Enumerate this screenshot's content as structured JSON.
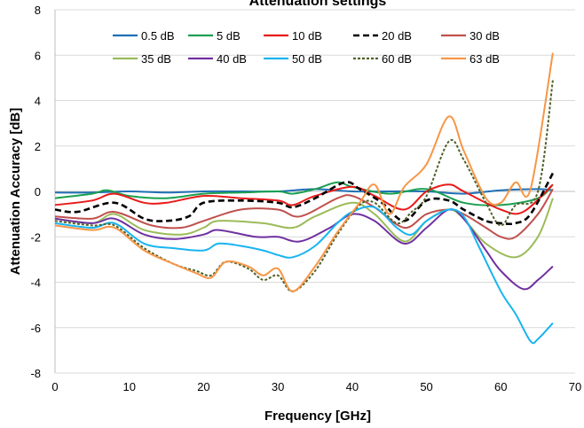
{
  "chart_data": {
    "type": "line",
    "title": "Attenuation settings",
    "xlabel": "Frequency [GHz]",
    "ylabel": "Attenuation Accuracy [dB]",
    "xlim": [
      0,
      70
    ],
    "ylim": [
      -8,
      8
    ],
    "xticks": [
      "0",
      "10",
      "20",
      "30",
      "40",
      "50",
      "60",
      "70"
    ],
    "yticks": [
      "-8",
      "-6",
      "-4",
      "-2",
      "0",
      "2",
      "4",
      "6",
      "8"
    ],
    "grid": "horizontal",
    "legend_position": "top",
    "series": [
      {
        "name": "0.5 dB",
        "color": "#1f6fb4",
        "dash": "solid",
        "x": [
          0,
          5,
          10,
          15,
          20,
          25,
          30,
          35,
          40,
          45,
          50,
          55,
          60,
          65,
          67
        ],
        "y": [
          -0.05,
          -0.05,
          0.0,
          -0.05,
          0.0,
          0.0,
          0.0,
          0.1,
          0.0,
          0.0,
          0.0,
          -0.1,
          0.05,
          0.1,
          0.05
        ]
      },
      {
        "name": "5 dB",
        "color": "#1aa050",
        "dash": "solid",
        "x": [
          0,
          5,
          7,
          10,
          15,
          20,
          25,
          30,
          32,
          35,
          38,
          40,
          45,
          50,
          55,
          60,
          65,
          67
        ],
        "y": [
          -0.3,
          -0.1,
          0.05,
          -0.2,
          -0.3,
          -0.1,
          -0.05,
          0.0,
          -0.1,
          0.1,
          0.4,
          0.2,
          -0.1,
          0.1,
          -0.5,
          -0.6,
          -0.3,
          0.3
        ]
      },
      {
        "name": "10 dB",
        "color": "#e81a1a",
        "dash": "solid",
        "x": [
          0,
          5,
          8,
          12,
          15,
          20,
          25,
          30,
          32,
          35,
          40,
          43,
          47,
          50,
          53,
          55,
          60,
          63,
          67
        ],
        "y": [
          -0.6,
          -0.4,
          -0.1,
          -0.5,
          -0.5,
          -0.2,
          -0.3,
          -0.4,
          -0.6,
          -0.2,
          0.2,
          -0.2,
          -0.8,
          0.0,
          0.3,
          0.0,
          -0.8,
          -0.9,
          0.3
        ]
      },
      {
        "name": "20 dB",
        "color": "#000000",
        "dash": "dash",
        "x": [
          0,
          3,
          8,
          12,
          15,
          18,
          20,
          25,
          30,
          32,
          35,
          39,
          41,
          44,
          47,
          50,
          53,
          55,
          58,
          60,
          62,
          64,
          67
        ],
        "y": [
          -0.8,
          -0.9,
          -0.5,
          -1.2,
          -1.3,
          -1.1,
          -0.5,
          -0.4,
          -0.5,
          -0.7,
          -0.3,
          0.4,
          0.1,
          -0.5,
          -1.3,
          -0.4,
          -0.4,
          -0.8,
          -1.3,
          -1.4,
          -1.4,
          -1.0,
          0.8
        ]
      },
      {
        "name": "30 dB",
        "color": "#c0504d",
        "dash": "solid",
        "x": [
          0,
          5,
          8,
          13,
          17,
          20,
          25,
          30,
          33,
          38,
          40,
          43,
          47,
          50,
          53,
          55,
          58,
          60,
          62,
          65,
          67
        ],
        "y": [
          -1.1,
          -1.2,
          -0.9,
          -1.5,
          -1.6,
          -1.3,
          -0.8,
          -0.8,
          -1.1,
          -0.3,
          -0.2,
          -0.7,
          -1.6,
          -1.0,
          -0.8,
          -1.0,
          -1.6,
          -2.0,
          -2.0,
          -1.0,
          0.1
        ]
      },
      {
        "name": "35 dB",
        "color": "#9bbb59",
        "dash": "solid",
        "x": [
          0,
          5,
          8,
          12,
          17,
          20,
          22,
          28,
          32,
          35,
          40,
          43,
          47,
          50,
          53,
          55,
          58,
          62,
          65,
          67
        ],
        "y": [
          -1.2,
          -1.4,
          -1.0,
          -1.7,
          -1.9,
          -1.6,
          -1.3,
          -1.4,
          -1.6,
          -1.1,
          -0.5,
          -1.0,
          -2.2,
          -1.3,
          -0.8,
          -1.2,
          -2.3,
          -2.9,
          -2.0,
          -0.3
        ]
      },
      {
        "name": "40 dB",
        "color": "#7030a0",
        "dash": "solid",
        "x": [
          0,
          5,
          8,
          12,
          16,
          20,
          22,
          27,
          30,
          33,
          37,
          40,
          43,
          47,
          50,
          53,
          55,
          58,
          60,
          63,
          65,
          67
        ],
        "y": [
          -1.2,
          -1.4,
          -1.2,
          -1.9,
          -2.1,
          -1.9,
          -1.7,
          -2.0,
          -2.0,
          -2.2,
          -1.6,
          -1.0,
          -1.3,
          -2.3,
          -1.6,
          -0.8,
          -1.2,
          -2.6,
          -3.5,
          -4.3,
          -3.9,
          -3.3
        ]
      },
      {
        "name": "50 dB",
        "color": "#18b4f0",
        "dash": "solid",
        "x": [
          0,
          5,
          8,
          12,
          16,
          20,
          22,
          25,
          28,
          30,
          32,
          35,
          38,
          40,
          43,
          46,
          48,
          50,
          53,
          55,
          57,
          60,
          62,
          64,
          65,
          67
        ],
        "y": [
          -1.4,
          -1.6,
          -1.4,
          -2.3,
          -2.5,
          -2.6,
          -2.3,
          -2.4,
          -2.6,
          -2.8,
          -2.9,
          -2.4,
          -1.4,
          -0.9,
          -0.7,
          -1.6,
          -1.9,
          -1.3,
          -0.8,
          -1.1,
          -2.4,
          -4.4,
          -5.4,
          -6.6,
          -6.5,
          -5.8
        ]
      },
      {
        "name": "60 dB",
        "color": "#4f6228",
        "dash": "dot",
        "x": [
          0,
          5,
          8,
          12,
          16,
          19,
          21,
          23,
          26,
          28,
          30,
          32,
          35,
          38,
          41,
          43,
          46,
          48,
          50,
          53,
          55,
          58,
          60,
          62,
          65,
          67
        ],
        "y": [
          -1.3,
          -1.5,
          -1.5,
          -2.5,
          -3.2,
          -3.5,
          -3.7,
          -3.1,
          -3.4,
          -3.9,
          -3.7,
          -4.4,
          -3.5,
          -1.9,
          -0.6,
          -0.5,
          -1.4,
          -0.9,
          -0.2,
          2.2,
          1.4,
          -0.5,
          -1.5,
          -0.6,
          0.0,
          4.9
        ]
      },
      {
        "name": "63 dB",
        "color": "#f79646",
        "dash": "solid",
        "x": [
          0,
          5,
          8,
          12,
          16,
          19,
          21,
          23,
          26,
          28,
          30,
          32,
          35,
          38,
          41,
          43,
          45,
          47,
          50,
          53,
          55,
          58,
          60,
          62,
          64,
          67
        ],
        "y": [
          -1.5,
          -1.7,
          -1.6,
          -2.6,
          -3.2,
          -3.6,
          -3.8,
          -3.1,
          -3.3,
          -3.7,
          -3.4,
          -4.4,
          -3.3,
          -1.8,
          -0.5,
          0.3,
          -1.0,
          0.2,
          1.2,
          3.3,
          1.8,
          -0.3,
          -0.5,
          0.4,
          0.1,
          6.1
        ]
      }
    ]
  }
}
